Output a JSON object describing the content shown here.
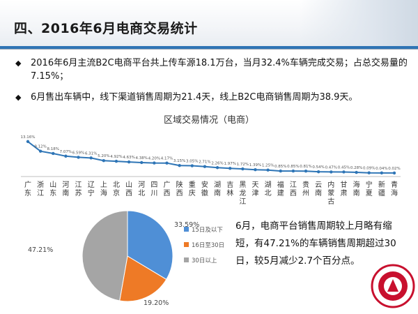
{
  "page": {
    "title": "四、2016年6月电商交易统计",
    "bullets": [
      "2016年6月主流B2C电商平台共上传车源18.1万台，当月32.4%车辆完成交易；占总交易量的7.15%；",
      "6月售出车辆中，线下渠道销售周期为21.4天，线上B2C电商销售周期为38.9天。"
    ],
    "bullet_symbol": "◆",
    "pie_note": "6月，电商平台销售周期较上月略有缩短，有47.21%的车辆销售周期超过30日，较5月减少2.7个百分点。"
  },
  "chart_data": [
    {
      "type": "line",
      "title": "区域交易情况（电商）",
      "categories": [
        "广东",
        "浙江",
        "山东",
        "河南",
        "江苏",
        "辽宁",
        "上海",
        "北京",
        "山西",
        "河北",
        "四川",
        "广西",
        "陕西",
        "重庆",
        "安徽",
        "湖南",
        "吉林",
        "黑龙江",
        "天津",
        "湖北",
        "福建",
        "江西",
        "贵州",
        "云南",
        "内蒙古",
        "甘肃",
        "海南",
        "宁夏",
        "新疆",
        "青海"
      ],
      "values": [
        13.16,
        9.12,
        8.18,
        7.07,
        6.59,
        6.31,
        5.2,
        4.92,
        4.63,
        4.38,
        4.2,
        4.17,
        3.15,
        3.05,
        2.71,
        2.26,
        1.97,
        1.72,
        1.39,
        1.25,
        0.85,
        0.85,
        0.81,
        0.54,
        0.47,
        0.45,
        0.28,
        0.09,
        0.04,
        0.02
      ],
      "value_labels": [
        "13.16%",
        "9.12%",
        "8.18%",
        "7.07%",
        "6.59%",
        "6.31%",
        "5.20%",
        "4.92%",
        "4.63%",
        "4.38%",
        "4.20%",
        "4.17%",
        "3.15%",
        "3.05%",
        "2.71%",
        "2.26%",
        "1.97%",
        "1.72%",
        "1.39%",
        "1.25%",
        "0.85%",
        "0.85%",
        "0.81%",
        "0.54%",
        "0.47%",
        "0.45%",
        "0.28%",
        "0.09%",
        "0.04%",
        "0.02%"
      ],
      "ylim": [
        0,
        14
      ],
      "grid": false,
      "colors": {
        "line": "#2e75b6",
        "marker": "#2e75b6"
      }
    },
    {
      "type": "pie",
      "labels": [
        "15日及以下",
        "16日至30日",
        "30日以上"
      ],
      "values": [
        33.59,
        19.2,
        47.21
      ],
      "value_labels": [
        "33.59%",
        "19.20%",
        "47.21%"
      ],
      "colors": [
        "#4f8fd6",
        "#ee7a26",
        "#a5a5a5"
      ],
      "legend": "right"
    }
  ],
  "decor": {
    "seal_color": "#c8102e"
  }
}
